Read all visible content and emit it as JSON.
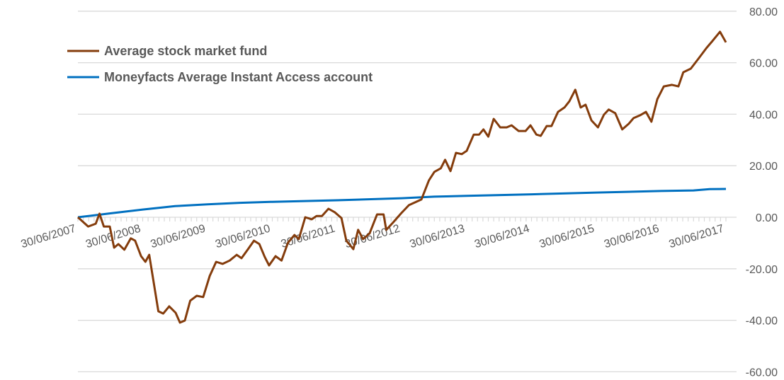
{
  "chart_data": {
    "type": "line",
    "title": "",
    "xlabel": "",
    "ylabel": "",
    "x_unit": "months since 30/06/2007",
    "xlim": [
      0,
      120
    ],
    "ylim": [
      -60,
      80
    ],
    "y_ticks": [
      80,
      60,
      40,
      20,
      0,
      -20,
      -40,
      -60
    ],
    "y_tick_labels": [
      "80.00",
      "60.00",
      "40.00",
      "20.00",
      "0.00",
      "-20.00",
      "-40.00",
      "-60.00"
    ],
    "x_ticks": [
      0,
      12,
      24,
      36,
      48,
      60,
      72,
      84,
      96,
      108,
      120
    ],
    "x_tick_labels": [
      "30/06/2007",
      "30/06/2008",
      "30/06/2009",
      "30/06/2010",
      "30/06/2011",
      "30/06/2012",
      "30/06/2013",
      "30/06/2014",
      "30/06/2015",
      "30/06/2016",
      "30/06/2017"
    ],
    "grid": true,
    "legend_position": "top-left",
    "series": [
      {
        "name": "Average stock market fund",
        "color": "#843c0c",
        "points": [
          [
            0,
            0
          ],
          [
            1.9,
            -3.6
          ],
          [
            3.3,
            -2.5
          ],
          [
            4,
            1.4
          ],
          [
            4.8,
            -3.6
          ],
          [
            5.9,
            -3.6
          ],
          [
            6.7,
            -11.8
          ],
          [
            7.5,
            -10.4
          ],
          [
            8.6,
            -12.6
          ],
          [
            9.8,
            -8.2
          ],
          [
            10.6,
            -9.1
          ],
          [
            11.7,
            -15.1
          ],
          [
            12.5,
            -17.3
          ],
          [
            13.2,
            -14.6
          ],
          [
            14.9,
            -36.5
          ],
          [
            15.8,
            -37.4
          ],
          [
            16.9,
            -34.6
          ],
          [
            18.1,
            -37.1
          ],
          [
            18.9,
            -40.9
          ],
          [
            19.8,
            -40.1
          ],
          [
            20.8,
            -32.4
          ],
          [
            22,
            -30.5
          ],
          [
            23.2,
            -31
          ],
          [
            24.4,
            -22.8
          ],
          [
            25.6,
            -17.3
          ],
          [
            26.8,
            -18.1
          ],
          [
            28.1,
            -16.8
          ],
          [
            29.4,
            -14.6
          ],
          [
            30.3,
            -15.9
          ],
          [
            31.5,
            -12.4
          ],
          [
            32.6,
            -9.1
          ],
          [
            33.6,
            -10.4
          ],
          [
            34.6,
            -15.4
          ],
          [
            35.4,
            -18.7
          ],
          [
            36.6,
            -15.1
          ],
          [
            37.7,
            -16.8
          ],
          [
            38.9,
            -9.9
          ],
          [
            40.1,
            -6.9
          ],
          [
            40.9,
            -8.5
          ],
          [
            42.1,
            0
          ],
          [
            43.3,
            -0.8
          ],
          [
            44.2,
            0.5
          ],
          [
            45.2,
            0.5
          ],
          [
            46.4,
            3.3
          ],
          [
            47.6,
            1.9
          ],
          [
            48.8,
            -0.3
          ],
          [
            49.7,
            -9.1
          ],
          [
            51,
            -12.4
          ],
          [
            51.9,
            -4.9
          ],
          [
            52.8,
            -8.5
          ],
          [
            54,
            -6.3
          ],
          [
            55.4,
            1.1
          ],
          [
            56.6,
            1.1
          ],
          [
            57.1,
            -4.9
          ],
          [
            58.3,
            -2.2
          ],
          [
            59.8,
            1.4
          ],
          [
            61.3,
            4.7
          ],
          [
            63.6,
            6.9
          ],
          [
            65,
            14.3
          ],
          [
            66,
            17.6
          ],
          [
            67.2,
            19
          ],
          [
            68,
            22.3
          ],
          [
            69,
            17.9
          ],
          [
            70,
            25
          ],
          [
            71.1,
            24.5
          ],
          [
            72,
            25.8
          ],
          [
            73.3,
            32.1
          ],
          [
            74.3,
            32.1
          ],
          [
            75.1,
            34.1
          ],
          [
            76,
            31.3
          ],
          [
            77,
            38.2
          ],
          [
            78.2,
            34.9
          ],
          [
            79.4,
            34.9
          ],
          [
            80.3,
            35.7
          ],
          [
            81.6,
            33.5
          ],
          [
            82.9,
            33.5
          ],
          [
            83.8,
            35.7
          ],
          [
            84.9,
            32.1
          ],
          [
            85.7,
            31.6
          ],
          [
            86.8,
            35.4
          ],
          [
            87.7,
            35.4
          ],
          [
            88.9,
            40.9
          ],
          [
            90.1,
            42.6
          ],
          [
            91,
            45
          ],
          [
            92.1,
            49.5
          ],
          [
            93.1,
            42.6
          ],
          [
            94,
            43.7
          ],
          [
            95.1,
            37.6
          ],
          [
            96.3,
            34.9
          ],
          [
            97.4,
            39.8
          ],
          [
            98.3,
            41.8
          ],
          [
            99.5,
            40.4
          ],
          [
            100.8,
            34.1
          ],
          [
            102,
            36.3
          ],
          [
            102.9,
            38.5
          ],
          [
            104.1,
            39.6
          ],
          [
            105.2,
            40.9
          ],
          [
            106.2,
            37.1
          ],
          [
            107.3,
            45.9
          ],
          [
            108.5,
            50.8
          ],
          [
            110,
            51.4
          ],
          [
            111.2,
            50.8
          ],
          [
            112.1,
            56.3
          ],
          [
            113.5,
            57.7
          ],
          [
            115,
            61.8
          ],
          [
            116.4,
            65.7
          ],
          [
            117.5,
            68.4
          ],
          [
            118.9,
            72
          ],
          [
            120,
            67.9
          ]
        ]
      },
      {
        "name": "Moneyfacts Average Instant Access account",
        "color": "#0070c0",
        "points": [
          [
            0,
            0
          ],
          [
            6,
            1.5
          ],
          [
            12,
            3
          ],
          [
            18,
            4.3
          ],
          [
            24,
            5
          ],
          [
            30,
            5.6
          ],
          [
            36,
            6
          ],
          [
            48,
            6.6
          ],
          [
            60,
            7.4
          ],
          [
            66,
            8
          ],
          [
            72,
            8.3
          ],
          [
            84,
            8.9
          ],
          [
            96,
            9.6
          ],
          [
            108,
            10.2
          ],
          [
            114,
            10.4
          ],
          [
            117,
            10.9
          ],
          [
            120,
            11
          ]
        ]
      }
    ]
  }
}
